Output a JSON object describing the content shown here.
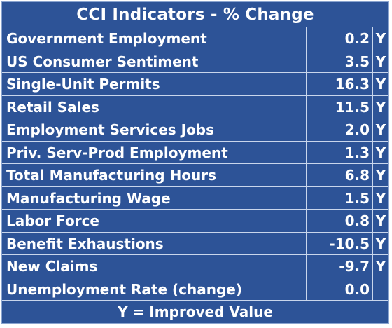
{
  "title": "CCI Indicators - % Change",
  "rows": [
    {
      "label": "Government Employment",
      "value": "0.2",
      "flag": "Y"
    },
    {
      "label": "US Consumer Sentiment",
      "value": "3.5",
      "flag": "Y"
    },
    {
      "label": "Single-Unit Permits",
      "value": "16.3",
      "flag": "Y"
    },
    {
      "label": "Retail Sales",
      "value": "11.5",
      "flag": "Y"
    },
    {
      "label": "Employment Services Jobs",
      "value": "2.0",
      "flag": "Y"
    },
    {
      "label": "Priv. Serv-Prod Employment",
      "value": "1.3",
      "flag": "Y"
    },
    {
      "label": "Total Manufacturing Hours",
      "value": "6.8",
      "flag": "Y"
    },
    {
      "label": "Manufacturing Wage",
      "value": "1.5",
      "flag": "Y"
    },
    {
      "label": "Labor Force",
      "value": "0.8",
      "flag": "Y"
    },
    {
      "label": "Benefit Exhaustions",
      "value": "-10.5",
      "flag": "Y"
    },
    {
      "label": "New Claims",
      "value": "-9.7",
      "flag": "Y"
    },
    {
      "label": "Unemployment Rate (change)",
      "value": "0.0",
      "flag": ""
    }
  ],
  "footer": "Y = Improved Value",
  "colors": {
    "background": "#2d5397",
    "text": "#ffffff",
    "grid": "#c9d6ec"
  }
}
